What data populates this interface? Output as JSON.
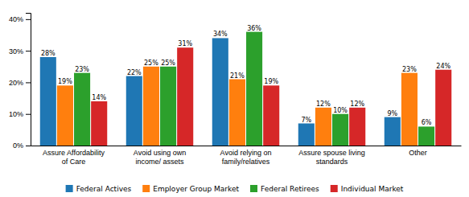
{
  "chart_data": {
    "type": "bar",
    "categories": [
      "Assure Affordability\nof Care",
      "Avoid using own\nincome/ assets",
      "Avoid relying on\nfamily/relatives",
      "Assure spouse living\nstandards",
      "Other"
    ],
    "series": [
      {
        "name": "Federal Actives",
        "values": [
          28,
          22,
          34,
          7,
          9
        ],
        "value_labels": [
          "28%",
          "22%",
          "34%",
          "7%",
          "9%"
        ]
      },
      {
        "name": "Employer Group Market",
        "values": [
          19,
          25,
          21,
          12,
          23
        ],
        "value_labels": [
          "19%",
          "25%",
          "21%",
          "12%",
          "23%"
        ]
      },
      {
        "name": "Federal Retirees",
        "values": [
          23,
          25,
          36,
          10,
          6
        ],
        "value_labels": [
          "23%",
          "25%",
          "36%",
          "10%",
          "6%"
        ]
      },
      {
        "name": "Individual Market",
        "values": [
          14,
          31,
          19,
          12,
          24
        ],
        "value_labels": [
          "14%",
          "31%",
          "19%",
          "12%",
          "24%"
        ]
      }
    ],
    "ylim": [
      0,
      42
    ],
    "yticks": [
      {
        "value": 0,
        "label": "0%"
      },
      {
        "value": 10,
        "label": "10%"
      },
      {
        "value": 20,
        "label": "20%"
      },
      {
        "value": 30,
        "label": "30%"
      },
      {
        "value": 40,
        "label": "40%"
      }
    ],
    "grid": false,
    "legend": "bottom",
    "data_labels": true
  }
}
